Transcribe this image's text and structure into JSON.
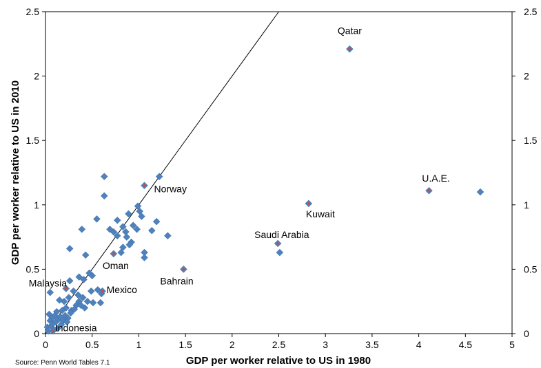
{
  "chart_data": {
    "type": "scatter",
    "xlabel": "GDP per worker relative to US in 1980",
    "ylabel": "GDP per worker relative to US in 2010",
    "source": "Source: Penn World Tables 7.1",
    "xlim": [
      0,
      5
    ],
    "ylim": [
      0,
      2.5
    ],
    "x_ticks": [
      "0",
      "0.5",
      "1",
      "1.5",
      "2",
      "2.5",
      "3",
      "3.5",
      "4",
      "4.5",
      "5"
    ],
    "y_ticks": [
      "0",
      "0.5",
      "1",
      "1.5",
      "2",
      "2.5"
    ],
    "reference_line": {
      "type": "45-degree",
      "slope": 1,
      "intercept": 0
    },
    "grid": false,
    "colors": {
      "points": "#4f81bd",
      "highlighted": "#c0504d",
      "line": "#000000"
    },
    "series": [
      {
        "values": [
          {
            "x": 0.63,
            "y": 1.22
          },
          {
            "x": 1.22,
            "y": 1.22
          },
          {
            "x": 0.63,
            "y": 1.07
          },
          {
            "x": 0.99,
            "y": 0.99
          },
          {
            "x": 1.01,
            "y": 0.95
          },
          {
            "x": 1.03,
            "y": 0.91
          },
          {
            "x": 0.89,
            "y": 0.93
          },
          {
            "x": 0.77,
            "y": 0.88
          },
          {
            "x": 0.55,
            "y": 0.89
          },
          {
            "x": 1.19,
            "y": 0.87
          },
          {
            "x": 0.69,
            "y": 0.81
          },
          {
            "x": 0.73,
            "y": 0.79
          },
          {
            "x": 0.83,
            "y": 0.83
          },
          {
            "x": 0.86,
            "y": 0.79
          },
          {
            "x": 0.94,
            "y": 0.84
          },
          {
            "x": 0.98,
            "y": 0.81
          },
          {
            "x": 0.77,
            "y": 0.76
          },
          {
            "x": 0.87,
            "y": 0.75
          },
          {
            "x": 1.14,
            "y": 0.8
          },
          {
            "x": 1.31,
            "y": 0.76
          },
          {
            "x": 0.39,
            "y": 0.81
          },
          {
            "x": 0.92,
            "y": 0.71
          },
          {
            "x": 0.9,
            "y": 0.69
          },
          {
            "x": 0.83,
            "y": 0.67
          },
          {
            "x": 0.81,
            "y": 0.63
          },
          {
            "x": 1.06,
            "y": 0.63
          },
          {
            "x": 1.06,
            "y": 0.59
          },
          {
            "x": 0.26,
            "y": 0.66
          },
          {
            "x": 0.43,
            "y": 0.61
          },
          {
            "x": 0.5,
            "y": 0.45
          },
          {
            "x": 0.36,
            "y": 0.44
          },
          {
            "x": 0.41,
            "y": 0.42
          },
          {
            "x": 0.47,
            "y": 0.47
          },
          {
            "x": 0.49,
            "y": 0.33
          },
          {
            "x": 0.56,
            "y": 0.34
          },
          {
            "x": 0.6,
            "y": 0.31
          },
          {
            "x": 0.59,
            "y": 0.24
          },
          {
            "x": 0.51,
            "y": 0.24
          },
          {
            "x": 0.26,
            "y": 0.41
          },
          {
            "x": 0.05,
            "y": 0.32
          },
          {
            "x": 0.3,
            "y": 0.33
          },
          {
            "x": 0.35,
            "y": 0.3
          },
          {
            "x": 0.25,
            "y": 0.28
          },
          {
            "x": 0.2,
            "y": 0.25
          },
          {
            "x": 0.15,
            "y": 0.26
          },
          {
            "x": 0.4,
            "y": 0.28
          },
          {
            "x": 0.45,
            "y": 0.25
          },
          {
            "x": 0.42,
            "y": 0.2
          },
          {
            "x": 0.33,
            "y": 0.22
          },
          {
            "x": 0.28,
            "y": 0.18
          },
          {
            "x": 0.22,
            "y": 0.2
          },
          {
            "x": 0.18,
            "y": 0.18
          },
          {
            "x": 0.12,
            "y": 0.17
          },
          {
            "x": 0.1,
            "y": 0.14
          },
          {
            "x": 0.07,
            "y": 0.12
          },
          {
            "x": 0.05,
            "y": 0.1
          },
          {
            "x": 0.04,
            "y": 0.15
          },
          {
            "x": 0.02,
            "y": 0.05
          },
          {
            "x": 0.03,
            "y": 0.02
          },
          {
            "x": 0.06,
            "y": 0.06
          },
          {
            "x": 0.08,
            "y": 0.08
          },
          {
            "x": 0.11,
            "y": 0.09
          },
          {
            "x": 0.14,
            "y": 0.11
          },
          {
            "x": 0.16,
            "y": 0.13
          },
          {
            "x": 0.19,
            "y": 0.1
          },
          {
            "x": 0.21,
            "y": 0.14
          },
          {
            "x": 0.24,
            "y": 0.12
          },
          {
            "x": 0.27,
            "y": 0.16
          },
          {
            "x": 0.31,
            "y": 0.19
          },
          {
            "x": 0.13,
            "y": 0.04
          },
          {
            "x": 0.17,
            "y": 0.07
          },
          {
            "x": 0.09,
            "y": 0.03
          },
          {
            "x": 0.23,
            "y": 0.09
          },
          {
            "x": 0.36,
            "y": 0.25
          },
          {
            "x": 0.38,
            "y": 0.22
          },
          {
            "x": 2.51,
            "y": 0.63
          },
          {
            "x": 4.66,
            "y": 1.1
          }
        ]
      },
      {
        "highlighted": true,
        "values": [
          {
            "x": 3.26,
            "y": 2.21,
            "label": "Qatar"
          },
          {
            "x": 4.11,
            "y": 1.11,
            "label": "U.A.E."
          },
          {
            "x": 2.82,
            "y": 1.01,
            "label": "Kuwait"
          },
          {
            "x": 2.49,
            "y": 0.7,
            "label": "Saudi Arabia"
          },
          {
            "x": 1.06,
            "y": 1.15,
            "label": "Norway"
          },
          {
            "x": 0.73,
            "y": 0.62,
            "label": "Oman"
          },
          {
            "x": 1.48,
            "y": 0.5,
            "label": "Bahrain"
          },
          {
            "x": 0.22,
            "y": 0.35,
            "label": "Malaysia"
          },
          {
            "x": 0.61,
            "y": 0.33,
            "label": "Mexico"
          },
          {
            "x": 0.08,
            "y": 0.02,
            "label": "Indonesia"
          }
        ]
      }
    ]
  }
}
